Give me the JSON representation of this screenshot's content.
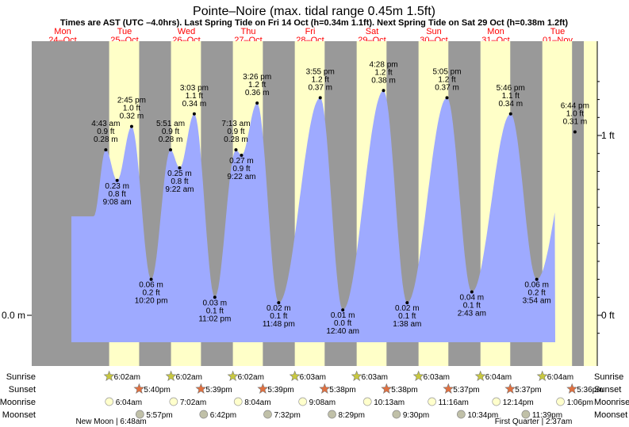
{
  "colors": {
    "night": "#999999",
    "day": "#ffffc8",
    "water": "#9eaaff",
    "red": "#ff0000",
    "sun": "#c8c840",
    "sunset": "#e07040",
    "moonrise": "#ffffcc",
    "moonset": "#c0c0a8"
  },
  "header": {
    "title": "Pointe–Noire (max. tidal range 0.45m 1.5ft)",
    "subtitle": "Times are AST (UTC –4.0hrs). Last Spring Tide on Fri 14 Oct (h=0.34m 1.1ft). Next Spring Tide on Sat 29 Oct (h=0.38m 1.2ft)"
  },
  "days": [
    {
      "name": "Mon",
      "date": "24–Oct"
    },
    {
      "name": "Tue",
      "date": "25–Oct"
    },
    {
      "name": "Wed",
      "date": "26–Oct"
    },
    {
      "name": "Thu",
      "date": "27–Oct"
    },
    {
      "name": "Fri",
      "date": "28–Oct"
    },
    {
      "name": "Sat",
      "date": "29–Oct"
    },
    {
      "name": "Sun",
      "date": "30–Oct"
    },
    {
      "name": "Mon",
      "date": "31–Oct"
    },
    {
      "name": "Tue",
      "date": "01–Nov"
    }
  ],
  "chart_data": {
    "type": "area",
    "title": "Pointe–Noire (max. tidal range 0.45m 1.5ft)",
    "x_unit": "hours from Mon 24-Oct 00:00",
    "x_range": [
      0,
      216
    ],
    "y_range_ft": [
      -0.15,
      1.45
    ],
    "left_axis": [
      {
        "label": "0.0 m",
        "ft": 0.0
      }
    ],
    "right_axis": [
      {
        "label": "1 ft",
        "ft": 1.0
      },
      {
        "label": "0 ft",
        "ft": 0.0
      }
    ],
    "daylight": [
      {
        "rise": 30.03,
        "set": 41.67
      },
      {
        "rise": 54.03,
        "set": 65.65
      },
      {
        "rise": 78.03,
        "set": 89.65
      },
      {
        "rise": 102.05,
        "set": 113.63
      },
      {
        "rise": 126.05,
        "set": 137.63
      },
      {
        "rise": 150.05,
        "set": 161.62
      },
      {
        "rise": 174.07,
        "set": 185.62
      },
      {
        "rise": 198.07,
        "set": 209.6
      }
    ],
    "tides": [
      {
        "t": 28.72,
        "type": "high",
        "m": "0.28 m",
        "ft": "0.9 ft",
        "time": "4:43 am",
        "h": 0.92
      },
      {
        "t": 33.13,
        "type": "low",
        "m": "0.23 m",
        "ft": "0.8 ft",
        "time": "9:08 am",
        "h": 0.75
      },
      {
        "t": 38.75,
        "type": "high",
        "m": "0.32 m",
        "ft": "1.0 ft",
        "time": "2:45 pm",
        "h": 1.05
      },
      {
        "t": 46.33,
        "type": "low",
        "m": "0.06 m",
        "ft": "0.2 ft",
        "time": "10:20 pm",
        "h": 0.2
      },
      {
        "t": 53.85,
        "type": "high",
        "m": "0.28 m",
        "ft": "0.9 ft",
        "time": "5:51 am",
        "h": 0.92
      },
      {
        "t": 57.37,
        "type": "low",
        "m": "0.25 m",
        "ft": "0.8 ft",
        "time": "9:22 am",
        "h": 0.82
      },
      {
        "t": 63.05,
        "type": "high",
        "m": "0.34 m",
        "ft": "1.1 ft",
        "time": "3:03 pm",
        "h": 1.12
      },
      {
        "t": 71.03,
        "type": "low",
        "m": "0.03 m",
        "ft": "0.1 ft",
        "time": "11:02 pm",
        "h": 0.1
      },
      {
        "t": 79.22,
        "type": "high",
        "m": "0.28 m",
        "ft": "0.9 ft",
        "time": "7:13 am",
        "h": 0.92
      },
      {
        "t": 81.37,
        "type": "low",
        "m": "0.27 m",
        "ft": "0.9 ft",
        "time": "9:22 am",
        "h": 0.89
      },
      {
        "t": 87.43,
        "type": "high",
        "m": "0.36 m",
        "ft": "1.2 ft",
        "time": "3:26 pm",
        "h": 1.18
      },
      {
        "t": 95.8,
        "type": "low",
        "m": "0.02 m",
        "ft": "0.1 ft",
        "time": "11:48 pm",
        "h": 0.07
      },
      {
        "t": 111.92,
        "type": "high",
        "m": "0.37 m",
        "ft": "1.2 ft",
        "time": "3:55 pm",
        "h": 1.21
      },
      {
        "t": 120.67,
        "type": "low",
        "m": "0.01 m",
        "ft": "0.0 ft",
        "time": "12:40 am",
        "h": 0.03
      },
      {
        "t": 136.47,
        "type": "high",
        "m": "0.38 m",
        "ft": "1.2 ft",
        "time": "4:28 pm",
        "h": 1.25
      },
      {
        "t": 145.63,
        "type": "low",
        "m": "0.02 m",
        "ft": "0.1 ft",
        "time": "1:38 am",
        "h": 0.07
      },
      {
        "t": 161.08,
        "type": "high",
        "m": "0.37 m",
        "ft": "1.2 ft",
        "time": "5:05 pm",
        "h": 1.21
      },
      {
        "t": 170.72,
        "type": "low",
        "m": "0.04 m",
        "ft": "0.1 ft",
        "time": "2:43 am",
        "h": 0.13
      },
      {
        "t": 185.77,
        "type": "high",
        "m": "0.34 m",
        "ft": "1.1 ft",
        "time": "5:46 pm",
        "h": 1.12
      },
      {
        "t": 195.9,
        "type": "low",
        "m": "0.06 m",
        "ft": "0.2 ft",
        "time": "3:54 am",
        "h": 0.2
      },
      {
        "t": 210.73,
        "type": "high",
        "m": "0.31 m",
        "ft": "1.0 ft",
        "time": "6:44 pm",
        "h": 1.02
      }
    ]
  },
  "legend": {
    "labels_left": [
      "Sunrise",
      "Sunset",
      "Moonrise",
      "Moonset"
    ],
    "labels_right": [
      "Sunrise",
      "Sunset",
      "Moonrise",
      "Moonset"
    ],
    "sunrise": [
      {
        "t": 30.03,
        "text": "6:02am"
      },
      {
        "t": 54.03,
        "text": "6:02am"
      },
      {
        "t": 78.03,
        "text": "6:02am"
      },
      {
        "t": 102.05,
        "text": "6:03am"
      },
      {
        "t": 126.05,
        "text": "6:03am"
      },
      {
        "t": 150.05,
        "text": "6:03am"
      },
      {
        "t": 174.07,
        "text": "6:04am"
      },
      {
        "t": 198.07,
        "text": "6:04am"
      }
    ],
    "sunset": [
      {
        "t": 41.67,
        "text": "5:40pm"
      },
      {
        "t": 65.65,
        "text": "5:39pm"
      },
      {
        "t": 89.65,
        "text": "5:39pm"
      },
      {
        "t": 113.63,
        "text": "5:38pm"
      },
      {
        "t": 137.63,
        "text": "5:38pm"
      },
      {
        "t": 161.62,
        "text": "5:37pm"
      },
      {
        "t": 185.62,
        "text": "5:37pm"
      },
      {
        "t": 209.6,
        "text": "5:36pm"
      }
    ],
    "moonrise": [
      {
        "t": 30.07,
        "text": "6:04am"
      },
      {
        "t": 55.03,
        "text": "7:02am"
      },
      {
        "t": 80.07,
        "text": "8:04am"
      },
      {
        "t": 105.13,
        "text": "9:08am"
      },
      {
        "t": 130.22,
        "text": "10:13am"
      },
      {
        "t": 155.27,
        "text": "11:16am"
      },
      {
        "t": 180.23,
        "text": "12:14pm"
      },
      {
        "t": 205.1,
        "text": "1:06pm"
      }
    ],
    "moonset": [
      {
        "t": 41.95,
        "text": "5:57pm"
      },
      {
        "t": 66.7,
        "text": "6:42pm"
      },
      {
        "t": 91.53,
        "text": "7:32pm"
      },
      {
        "t": 116.48,
        "text": "8:29pm"
      },
      {
        "t": 141.5,
        "text": "9:30pm"
      },
      {
        "t": 166.57,
        "text": "10:34pm"
      },
      {
        "t": 191.65,
        "text": "11:39pm"
      }
    ],
    "moon_phases": [
      {
        "t": 30.8,
        "text": "New Moon | 6:48am"
      },
      {
        "t": 194.62,
        "text": "First Quarter | 2:37am"
      }
    ]
  }
}
